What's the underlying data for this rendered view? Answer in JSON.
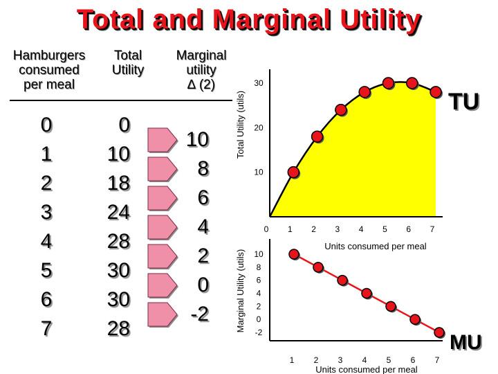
{
  "title": "Total and Marginal Utility",
  "table": {
    "headers": {
      "hamburgers": [
        "Hamburgers",
        "consumed",
        "per meal"
      ],
      "total": [
        "Total",
        "Utility"
      ],
      "marginal": [
        "Marginal",
        "utility",
        "∆ (2)"
      ]
    },
    "quantity": [
      "0",
      "1",
      "2",
      "3",
      "4",
      "5",
      "6",
      "7"
    ],
    "total_utility": [
      "0",
      "10",
      "18",
      "24",
      "28",
      "30",
      "30",
      "28"
    ],
    "marginal_utility": [
      "10",
      "8",
      "6",
      "4",
      "2",
      "0",
      "-2"
    ]
  },
  "chart_data": [
    {
      "type": "area",
      "name": "TU",
      "x": [
        0,
        1,
        2,
        3,
        4,
        5,
        6,
        7
      ],
      "y": [
        0,
        10,
        18,
        24,
        28,
        30,
        30,
        28
      ],
      "ylabel": "Total Utility (utils)",
      "xlabel": "Units consumed per meal",
      "xlim": [
        0,
        7
      ],
      "ylim": [
        0,
        30
      ],
      "y_ticks": [
        "10",
        "20",
        "30"
      ],
      "x_ticks": [
        "0",
        "1",
        "2",
        "3",
        "4",
        "5",
        "6",
        "7"
      ],
      "label": "TU",
      "fill_color": "#ffff00",
      "marker_color": "#e8141c"
    },
    {
      "type": "line",
      "name": "MU",
      "x": [
        1,
        2,
        3,
        4,
        5,
        6,
        7
      ],
      "y": [
        10,
        8,
        6,
        4,
        2,
        0,
        -2
      ],
      "ylabel": "Marginal Utility (utils)",
      "xlabel": "Units consumed per meal",
      "xlim": [
        0.5,
        7
      ],
      "ylim": [
        -2,
        10
      ],
      "y_ticks": [
        "10",
        "8",
        "6",
        "4",
        "2",
        "0",
        "-2"
      ],
      "x_ticks": [
        "1",
        "2",
        "3",
        "4",
        "5",
        "6",
        "7"
      ],
      "label": "MU",
      "line_color": "#e8141c",
      "marker_color": "#e8141c"
    }
  ]
}
